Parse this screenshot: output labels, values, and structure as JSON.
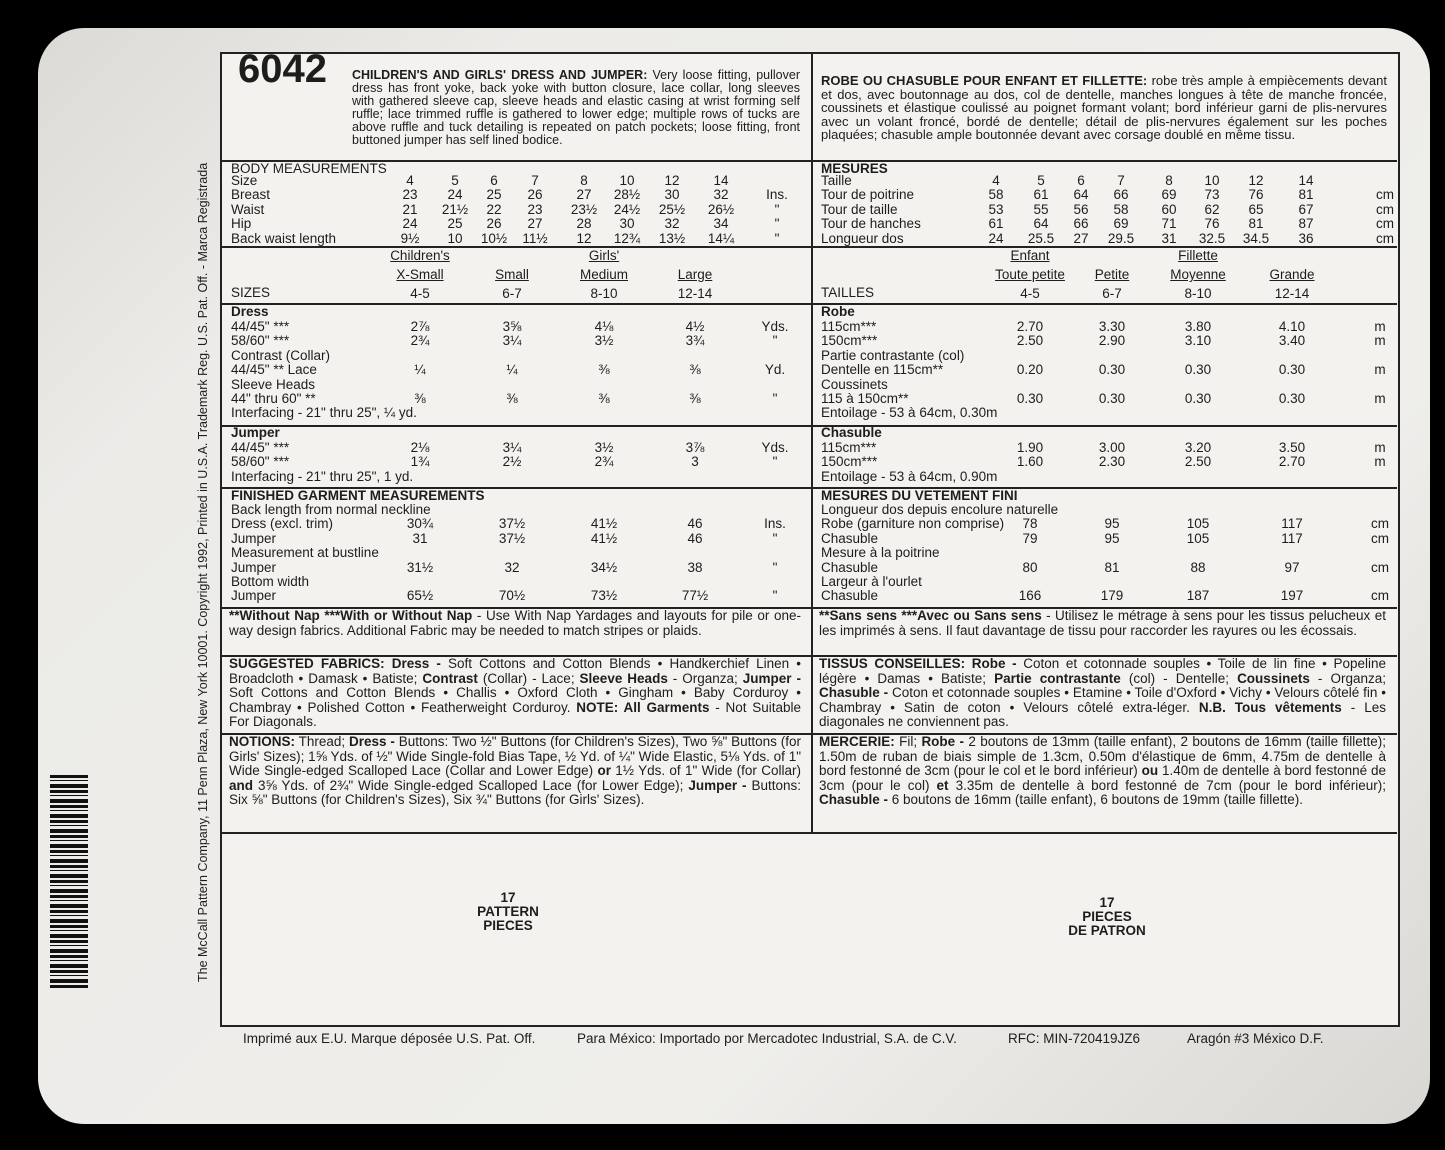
{
  "pattern_number": "6042",
  "english": {
    "description": [
      {
        "bold": "CHILDREN'S AND GIRLS' DRESS AND JUMPER:"
      },
      " Very loose fitting, pullover dress has front yoke, back yoke with button closure, lace collar, long sleeves with gathered sleeve cap, sleeve heads and elastic casing at wrist forming self ruffle; lace trimmed ruffle is gathered to lower edge; multiple rows of tucks are above ruffle and tuck detailing is repeated on patch pockets; loose fitting, front buttoned jumper has self lined bodice."
    ],
    "body_measurements": {
      "heading": "BODY MEASUREMENTS",
      "rows": [
        [
          "Size",
          "4",
          "5",
          "6",
          "7",
          "8",
          "10",
          "12",
          "14"
        ],
        [
          "Breast",
          "23",
          "24",
          "25",
          "26",
          "27",
          "28½",
          "30",
          "32",
          "Ins."
        ],
        [
          "Waist",
          "21",
          "21½",
          "22",
          "23",
          "23½",
          "24½",
          "25½",
          "26½",
          "\""
        ],
        [
          "Hip",
          "24",
          "25",
          "26",
          "27",
          "28",
          "30",
          "32",
          "34",
          "\""
        ],
        [
          "Back waist length",
          "9½",
          "10",
          "10½",
          "11½",
          "12",
          "12¾",
          "13½",
          "14¼",
          "\""
        ]
      ]
    },
    "sizes": {
      "groups": [
        "Children's",
        "Girls'"
      ],
      "label": "SIZES",
      "names": [
        "X-Small",
        "Small",
        "Medium",
        "Large"
      ],
      "ranges": [
        "4-5",
        "6-7",
        "8-10",
        "12-14"
      ]
    },
    "dress": {
      "heading": "Dress",
      "rows": [
        [
          "44/45\" ***",
          "2⅞",
          "3⅝",
          "4⅛",
          "4½",
          "Yds."
        ],
        [
          "58/60\" ***",
          "2¾",
          "3¼",
          "3½",
          "3¾",
          "\""
        ],
        [
          "Contrast (Collar)"
        ],
        [
          "44/45\" ** Lace",
          "¼",
          "¼",
          "⅜",
          "⅜",
          "Yd."
        ],
        [
          "Sleeve Heads"
        ],
        [
          "44\" thru 60\" **",
          "⅜",
          "⅜",
          "⅜",
          "⅜",
          "\""
        ],
        [
          "Interfacing - 21\" thru 25\", ¼ yd."
        ]
      ]
    },
    "jumper": {
      "heading": "Jumper",
      "rows": [
        [
          "44/45\" ***",
          "2⅛",
          "3¼",
          "3½",
          "3⅞",
          "Yds."
        ],
        [
          "58/60\" ***",
          "1¾",
          "2½",
          "2¾",
          "3",
          "\""
        ],
        [
          "Interfacing - 21\" thru 25\", 1 yd."
        ]
      ]
    },
    "finished": {
      "heading": "FINISHED GARMENT MEASUREMENTS",
      "rows": [
        [
          "Back length from normal neckline"
        ],
        [
          "Dress (excl. trim)",
          "30¾",
          "37½",
          "41½",
          "46",
          "Ins."
        ],
        [
          "Jumper",
          "31",
          "37½",
          "41½",
          "46",
          "\""
        ],
        [
          "Measurement at bustline"
        ],
        [
          "Jumper",
          "31½",
          "32",
          "34½",
          "38",
          "\""
        ],
        [
          "Bottom width"
        ],
        [
          "Jumper",
          "65½",
          "70½",
          "73½",
          "77½",
          "\""
        ]
      ]
    },
    "nap": [
      {
        "bold": "**Without Nap ***With or Without Nap"
      },
      " - Use With Nap Yardages and layouts for pile or one-way design fabrics. Additional Fabric may be needed to match stripes or plaids."
    ],
    "fabrics": [
      {
        "bold": "SUGGESTED FABRICS: Dress -"
      },
      " Soft Cottons and Cotton Blends • Handkerchief Linen • Broadcloth • Damask • Batiste; ",
      {
        "bold": "Contrast"
      },
      " (Collar) - Lace; ",
      {
        "bold": "Sleeve Heads"
      },
      " - Organza; ",
      {
        "bold": "Jumper -"
      },
      " Soft Cottons and Cotton Blends • Challis • Oxford Cloth • Gingham • Baby Corduroy • Chambray • Polished Cotton • Featherweight Corduroy. ",
      {
        "bold": "NOTE: All Garments"
      },
      " - Not Suitable For Diagonals."
    ],
    "notions": [
      {
        "bold": "NOTIONS:"
      },
      " Thread; ",
      {
        "bold": "Dress -"
      },
      " Buttons: Two ½\" Buttons (for Children's Sizes), Two ⅝\" Buttons (for Girls' Sizes); 1⅝ Yds. of ½\" Wide Single-fold Bias Tape, ½ Yd. of ¼\" Wide Elastic, 5⅛ Yds. of 1\" Wide Single-edged Scalloped Lace (Collar and Lower Edge) ",
      {
        "bold": "or"
      },
      " 1½ Yds. of 1\" Wide (for Collar) ",
      {
        "bold": "and"
      },
      " 3⅝ Yds. of 2¾\" Wide Single-edged Scalloped Lace (for Lower Edge); ",
      {
        "bold": "Jumper -"
      },
      " Buttons: Six ⅝\" Buttons (for Children's Sizes), Six ¾\" Buttons (for Girls' Sizes)."
    ],
    "pieces": [
      "17",
      "PATTERN",
      "PIECES"
    ]
  },
  "french": {
    "description": [
      {
        "bold": "ROBE OU CHASUBLE POUR ENFANT ET FILLETTE:"
      },
      " robe très ample à empiècements devant et dos, avec boutonnage au dos, col de dentelle, manches longues à tête de manche froncée, coussinets et élastique coulissé au poignet formant volant; bord inférieur garni de plis-nervures avec un volant froncé, bordé de dentelle; détail de plis-nervures également sur les poches plaquées; chasuble ample boutonnée devant avec corsage doublé en même tissu."
    ],
    "body_measurements": {
      "heading": "MESURES",
      "rows": [
        [
          "Taille",
          "4",
          "5",
          "6",
          "7",
          "8",
          "10",
          "12",
          "14"
        ],
        [
          "Tour de poitrine",
          "58",
          "61",
          "64",
          "66",
          "69",
          "73",
          "76",
          "81",
          "cm"
        ],
        [
          "Tour de taille",
          "53",
          "55",
          "56",
          "58",
          "60",
          "62",
          "65",
          "67",
          "cm"
        ],
        [
          "Tour de hanches",
          "61",
          "64",
          "66",
          "69",
          "71",
          "76",
          "81",
          "87",
          "cm"
        ],
        [
          "Longueur dos",
          "24",
          "25.5",
          "27",
          "29.5",
          "31",
          "32.5",
          "34.5",
          "36",
          "cm"
        ]
      ]
    },
    "sizes": {
      "groups": [
        "Enfant",
        "Fillette"
      ],
      "label": "TAILLES",
      "names": [
        "Toute petite",
        "Petite",
        "Moyenne",
        "Grande"
      ],
      "ranges": [
        "4-5",
        "6-7",
        "8-10",
        "12-14"
      ]
    },
    "dress": {
      "heading": "Robe",
      "rows": [
        [
          "115cm***",
          "2.70",
          "3.30",
          "3.80",
          "4.10",
          "m"
        ],
        [
          "150cm***",
          "2.50",
          "2.90",
          "3.10",
          "3.40",
          "m"
        ],
        [
          "Partie contrastante (col)"
        ],
        [
          "Dentelle en 115cm**",
          "0.20",
          "0.30",
          "0.30",
          "0.30",
          "m"
        ],
        [
          "Coussinets"
        ],
        [
          "115 à 150cm**",
          "0.30",
          "0.30",
          "0.30",
          "0.30",
          "m"
        ],
        [
          "Entoilage - 53 à 64cm, 0.30m"
        ]
      ]
    },
    "jumper": {
      "heading": "Chasuble",
      "rows": [
        [
          "115cm***",
          "1.90",
          "3.00",
          "3.20",
          "3.50",
          "m"
        ],
        [
          "150cm***",
          "1.60",
          "2.30",
          "2.50",
          "2.70",
          "m"
        ],
        [
          "Entoilage - 53 à 64cm, 0.90m"
        ]
      ]
    },
    "finished": {
      "heading": "MESURES DU VETEMENT FINI",
      "rows": [
        [
          "Longueur dos depuis encolure naturelle"
        ],
        [
          "Robe (garniture non comprise)",
          "78",
          "95",
          "105",
          "117",
          "cm"
        ],
        [
          "Chasuble",
          "79",
          "95",
          "105",
          "117",
          "cm"
        ],
        [
          "Mesure à la poitrine"
        ],
        [
          "Chasuble",
          "80",
          "81",
          "88",
          "97",
          "cm"
        ],
        [
          "Largeur à l'ourlet"
        ],
        [
          "Chasuble",
          "166",
          "179",
          "187",
          "197",
          "cm"
        ]
      ]
    },
    "nap": [
      {
        "bold": "**Sans sens ***Avec ou Sans sens"
      },
      " - Utilisez le métrage à sens pour les tissus pelucheux et les imprimés à sens. Il faut davantage de tissu pour raccorder les rayures ou les écossais."
    ],
    "fabrics": [
      {
        "bold": "TISSUS CONSEILLES: Robe -"
      },
      " Coton et cotonnade souples • Toile de lin fine • Popeline légère • Damas • Batiste; ",
      {
        "bold": "Partie contrastante"
      },
      " (col) - Dentelle; ",
      {
        "bold": "Coussinets"
      },
      " - Organza; ",
      {
        "bold": "Chasuble -"
      },
      " Coton et cotonnade souples • Etamine • Toile d'Oxford • Vichy • Velours côtelé fin • Chambray • Satin de coton • Velours côtelé extra-léger. ",
      {
        "bold": "N.B. Tous vêtements"
      },
      " - Les diagonales ne conviennent pas."
    ],
    "notions": [
      {
        "bold": "MERCERIE:"
      },
      " Fil; ",
      {
        "bold": "Robe -"
      },
      " 2 boutons de 13mm (taille enfant), 2 boutons de 16mm (taille fillette); 1.50m de ruban de biais simple de 1.3cm, 0.50m d'élastique de 6mm, 4.75m de dentelle à bord festonné de 3cm (pour le col et le bord inférieur) ",
      {
        "bold": "ou"
      },
      " 1.40m de dentelle à bord festonné de 3cm (pour le col) ",
      {
        "bold": "et"
      },
      " 3.35m de dentelle à bord festonné de 7cm (pour le bord inférieur); ",
      {
        "bold": "Chasuble -"
      },
      " 6 boutons de 16mm (taille enfant), 6 boutons de 19mm (taille fillette)."
    ],
    "pieces": [
      "17",
      "PIECES",
      "DE PATRON"
    ]
  },
  "footer": [
    "Imprimé aux E.U. Marque déposée U.S. Pat. Off.",
    "Para México: Importado por Mercadotec Industrial, S.A. de C.V.",
    "RFC: MIN-720419JZ6",
    "Aragón #3 México D.F."
  ],
  "side_text": "The McCall Pattern Company, 11 Penn Plaza, New York 10001.   Copyright 1992, Printed in U.S.A. Trademark Reg. U.S. Pat. Off. - Marca Registrada"
}
